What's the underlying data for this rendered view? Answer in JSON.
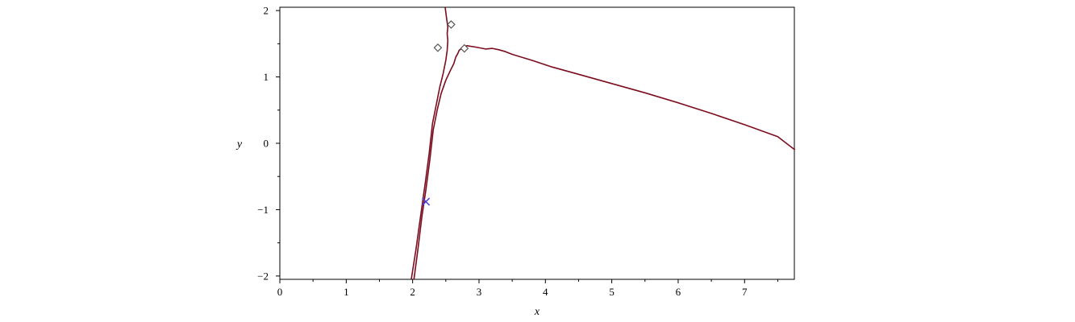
{
  "chart_data": {
    "type": "line",
    "title": "",
    "xlabel": "x",
    "ylabel": "y",
    "xlim": [
      0,
      7.75
    ],
    "ylim": [
      -2.05,
      2.05
    ],
    "grid": false,
    "legend": "none",
    "x_ticks": [
      0,
      1,
      2,
      3,
      4,
      5,
      6,
      7
    ],
    "y_ticks": [
      -2,
      -1,
      0,
      1,
      2
    ],
    "x_tick_labels": [
      "0",
      "1",
      "2",
      "3",
      "4",
      "5",
      "6",
      "7"
    ],
    "y_tick_labels": [
      "−2",
      "−1",
      "0",
      "1",
      "2"
    ],
    "series": [
      {
        "type": "line",
        "color": "#7b0d1e",
        "points": [
          [
            1.98,
            -2.05
          ],
          [
            2.05,
            -1.6
          ],
          [
            2.12,
            -1.1
          ],
          [
            2.19,
            -0.6
          ],
          [
            2.25,
            -0.15
          ],
          [
            2.3,
            0.3
          ],
          [
            2.36,
            0.6
          ],
          [
            2.41,
            0.85
          ],
          [
            2.46,
            1.05
          ],
          [
            2.5,
            1.25
          ],
          [
            2.52,
            1.4
          ],
          [
            2.53,
            1.55
          ],
          [
            2.52,
            1.65
          ],
          [
            2.53,
            1.75
          ],
          [
            2.51,
            1.9
          ],
          [
            2.49,
            2.05
          ]
        ]
      },
      {
        "type": "line",
        "color": "#7b0d1e",
        "points": [
          [
            2.02,
            -2.05
          ],
          [
            2.08,
            -1.6
          ],
          [
            2.14,
            -1.1
          ],
          [
            2.2,
            -0.7
          ],
          [
            2.26,
            -0.25
          ],
          [
            2.31,
            0.2
          ],
          [
            2.37,
            0.5
          ],
          [
            2.43,
            0.75
          ],
          [
            2.5,
            0.95
          ],
          [
            2.57,
            1.1
          ],
          [
            2.62,
            1.2
          ],
          [
            2.65,
            1.3
          ],
          [
            2.68,
            1.35
          ],
          [
            2.7,
            1.4
          ],
          [
            2.76,
            1.45
          ],
          [
            2.82,
            1.47
          ],
          [
            2.95,
            1.45
          ],
          [
            3.1,
            1.42
          ],
          [
            3.2,
            1.43
          ],
          [
            3.3,
            1.41
          ],
          [
            3.4,
            1.38
          ],
          [
            3.5,
            1.34
          ],
          [
            3.8,
            1.25
          ],
          [
            4.1,
            1.15
          ],
          [
            4.5,
            1.04
          ],
          [
            5.0,
            0.9
          ],
          [
            5.5,
            0.76
          ],
          [
            6.0,
            0.61
          ],
          [
            6.5,
            0.45
          ],
          [
            7.0,
            0.28
          ],
          [
            7.5,
            0.1
          ],
          [
            7.76,
            -0.1
          ]
        ]
      }
    ],
    "markers": [
      {
        "shape": "diamond",
        "color": "#555555",
        "x": 2.38,
        "y": 1.44
      },
      {
        "shape": "diamond",
        "color": "#555555",
        "x": 2.58,
        "y": 1.79
      },
      {
        "shape": "diamond",
        "color": "#555555",
        "x": 2.78,
        "y": 1.43
      },
      {
        "shape": "cross",
        "color": "#4b3fe0",
        "x": 2.2,
        "y": -0.88
      }
    ]
  }
}
